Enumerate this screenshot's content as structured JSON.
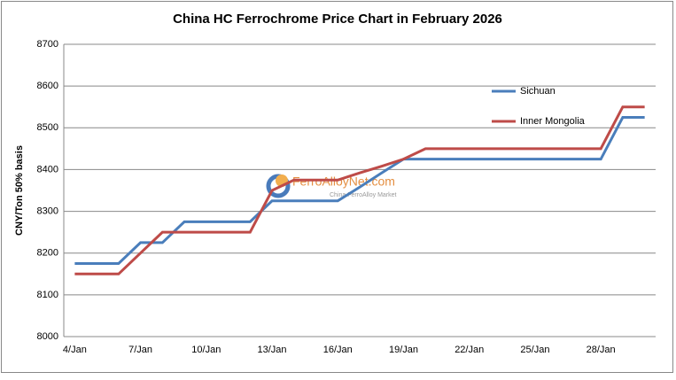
{
  "chart_data": {
    "type": "line",
    "title": "China HC Ferrochrome Price Chart in February 2026",
    "y_label": "CNY/Ton 50% basis",
    "watermark": "FerroAlloyNet.com",
    "watermark_subtitle": "China FerroAlloy Market",
    "categories": [
      "4/Jan",
      null,
      null,
      "7/Jan",
      null,
      null,
      "10/Jan",
      null,
      null,
      "13/Jan",
      null,
      null,
      "16/Jan",
      null,
      null,
      "19/Jan",
      null,
      null,
      "22/Jan",
      null,
      null,
      "25/Jan",
      null,
      null,
      "28/Jan",
      null,
      null
    ],
    "series": [
      {
        "name": "Sichuan",
        "color": "#4a7ebb",
        "values": [
          8175,
          8175,
          8175,
          8225,
          8225,
          8275,
          8275,
          8275,
          8275,
          8325,
          8325,
          8325,
          8325,
          8358,
          8392,
          8425,
          8425,
          8425,
          8425,
          8425,
          8425,
          8425,
          8425,
          8425,
          8425,
          8525,
          8525
        ]
      },
      {
        "name": "Inner Mongolia",
        "color": "#be4b48",
        "values": [
          8150,
          8150,
          8150,
          8200,
          8250,
          8250,
          8250,
          8250,
          8250,
          8350,
          8375,
          8375,
          8375,
          8392,
          8408,
          8425,
          8450,
          8450,
          8450,
          8450,
          8450,
          8450,
          8450,
          8450,
          8450,
          8550,
          8550
        ]
      }
    ],
    "ylim": [
      8000,
      8700
    ],
    "yticks": [
      8000,
      8100,
      8200,
      8300,
      8400,
      8500,
      8600,
      8700
    ],
    "grid": true
  }
}
